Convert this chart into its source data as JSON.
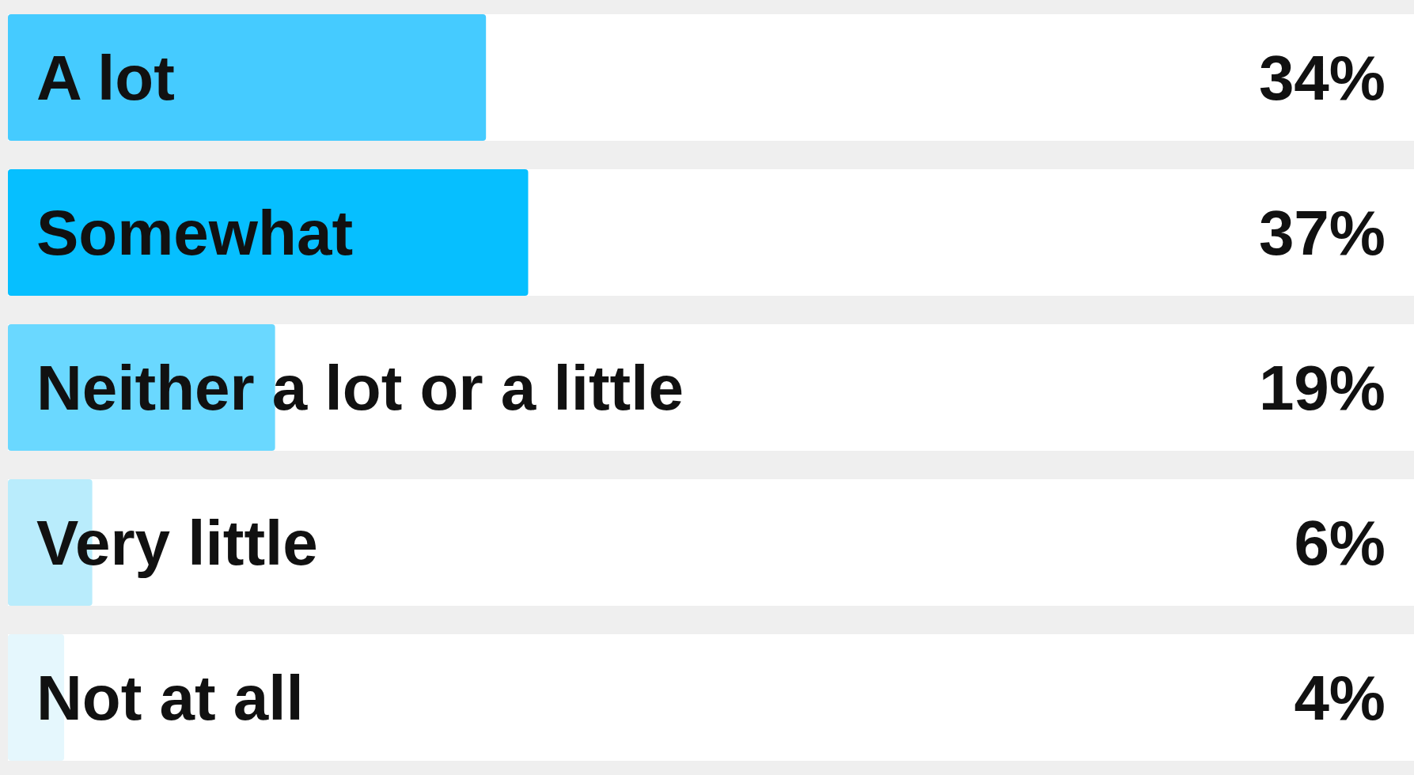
{
  "chart_data": {
    "type": "bar",
    "orientation": "horizontal",
    "categories": [
      "A lot",
      "Somewhat",
      "Neither a lot or a little",
      "Very little",
      "Not at all"
    ],
    "values": [
      34,
      37,
      19,
      6,
      4
    ],
    "colors": [
      "#45cbff",
      "#06bfff",
      "#6ad8ff",
      "#b9ecfc",
      "#e5f7fd"
    ],
    "value_labels": [
      "34%",
      "37%",
      "19%",
      "6%",
      "4%"
    ],
    "xlim": [
      0,
      100
    ]
  }
}
